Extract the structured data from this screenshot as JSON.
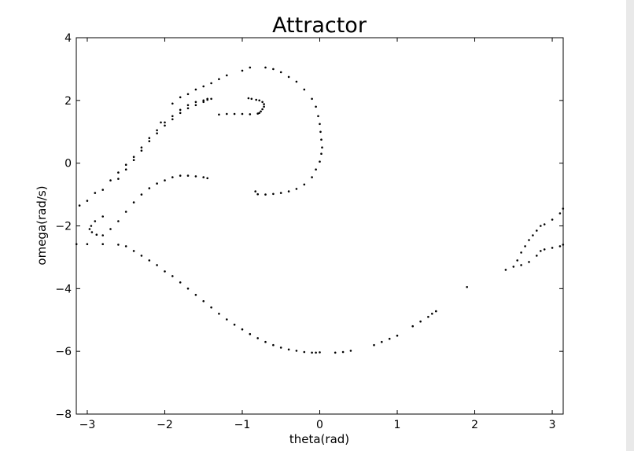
{
  "chart_data": {
    "type": "scatter",
    "title": "Attractor",
    "xlabel": "theta(rad)",
    "ylabel": "omega(rad/s)",
    "xlim": [
      -3.14159,
      3.14159
    ],
    "ylim": [
      -8,
      4
    ],
    "xticks": [
      -3,
      -2,
      -1,
      0,
      1,
      2,
      3
    ],
    "xtick_labels": [
      "−3",
      "−2",
      "−1",
      "0",
      "1",
      "2",
      "3"
    ],
    "yticks": [
      -8,
      -6,
      -4,
      -2,
      0,
      2,
      4
    ],
    "ytick_labels": [
      "−8",
      "−6",
      "−4",
      "−2",
      "0",
      "2",
      "4"
    ],
    "grid": false,
    "marker_color": "#000000",
    "series": [
      {
        "x": [
          -3.1,
          -2.9,
          -2.7,
          -2.6,
          -2.5,
          -2.4,
          -2.3,
          -2.2,
          -2.1,
          -2.0,
          -1.9,
          -1.8,
          -1.7,
          -1.6,
          -1.5,
          -1.45,
          -1.4,
          -1.3,
          -1.2,
          -1.1,
          -1.0,
          -0.9,
          -0.8,
          -0.78,
          -0.76,
          -0.74,
          -0.72,
          -0.72,
          -0.74,
          -0.78,
          -0.82,
          -0.88,
          -0.92
        ],
        "y": [
          -1.35,
          -0.95,
          -0.55,
          -0.3,
          -0.05,
          0.2,
          0.5,
          0.8,
          1.05,
          1.3,
          1.5,
          1.7,
          1.85,
          1.95,
          2.0,
          2.02,
          2.05,
          1.55,
          1.57,
          1.57,
          1.57,
          1.56,
          1.58,
          1.6,
          1.65,
          1.72,
          1.8,
          1.88,
          1.95,
          2.0,
          2.02,
          2.05,
          2.07
        ]
      },
      {
        "x": [
          -3.0,
          -2.8,
          -2.6,
          -2.5,
          -2.4,
          -2.3,
          -2.2,
          -2.1,
          -2.0,
          -1.9,
          -1.8,
          -1.7,
          -1.6,
          -1.5,
          -1.45
        ],
        "y": [
          -1.2,
          -0.85,
          -0.5,
          -0.2,
          0.1,
          0.4,
          0.7,
          0.95,
          1.2,
          1.4,
          1.6,
          1.75,
          1.85,
          1.95,
          2.05
        ]
      },
      {
        "x": [
          -2.05,
          -1.9,
          -1.8,
          -1.7,
          -1.6,
          -1.5,
          -1.4,
          -1.3,
          -1.2,
          -1.0,
          -0.9
        ],
        "y": [
          1.3,
          1.9,
          2.1,
          2.2,
          2.35,
          2.45,
          2.55,
          2.68,
          2.8,
          2.95,
          3.05
        ]
      },
      {
        "x": [
          -0.7,
          -0.6,
          -0.5,
          -0.4,
          -0.3,
          -0.2,
          -0.1,
          -0.05,
          -0.02,
          0.0,
          0.01,
          0.02,
          0.03,
          0.02,
          0.0,
          -0.05,
          -0.1,
          -0.2,
          -0.3,
          -0.4,
          -0.5,
          -0.6,
          -0.7,
          -0.8,
          -0.83
        ],
        "y": [
          3.05,
          3.0,
          2.9,
          2.75,
          2.6,
          2.35,
          2.05,
          1.8,
          1.5,
          1.25,
          1.0,
          0.75,
          0.5,
          0.3,
          0.05,
          -0.2,
          -0.45,
          -0.68,
          -0.82,
          -0.9,
          -0.95,
          -0.98,
          -1.0,
          -0.99,
          -0.9
        ]
      },
      {
        "x": [
          -2.8,
          -2.9,
          -2.95,
          -2.97,
          -2.94,
          -2.88,
          -2.8,
          -2.7,
          -2.6,
          -2.5,
          -2.4,
          -2.3,
          -2.2,
          -2.1,
          -2.0,
          -1.9,
          -1.8,
          -1.7,
          -1.6,
          -1.5,
          -1.45
        ],
        "y": [
          -1.7,
          -1.85,
          -2.0,
          -2.1,
          -2.2,
          -2.28,
          -2.3,
          -2.1,
          -1.85,
          -1.55,
          -1.25,
          -1.0,
          -0.8,
          -0.65,
          -0.55,
          -0.45,
          -0.4,
          -0.4,
          -0.42,
          -0.45,
          -0.48
        ]
      },
      {
        "x": [
          -3.14,
          -3.0,
          -2.8,
          -2.6,
          -2.5,
          -2.4,
          -2.3,
          -2.2,
          -2.1,
          -2.0,
          -1.9,
          -1.8,
          -1.7,
          -1.6,
          -1.5,
          -1.4,
          -1.3,
          -1.2,
          -1.1,
          -1.0,
          -0.9,
          -0.8,
          -0.7,
          -0.6,
          -0.5,
          -0.4,
          -0.3,
          -0.2,
          -0.1,
          -0.05,
          0.0
        ],
        "y": [
          -2.58,
          -2.58,
          -2.58,
          -2.6,
          -2.65,
          -2.8,
          -2.95,
          -3.1,
          -3.25,
          -3.45,
          -3.6,
          -3.8,
          -4.0,
          -4.2,
          -4.4,
          -4.6,
          -4.8,
          -4.98,
          -5.15,
          -5.3,
          -5.45,
          -5.58,
          -5.7,
          -5.8,
          -5.88,
          -5.94,
          -5.98,
          -6.02,
          -6.04,
          -6.04,
          -6.03
        ]
      },
      {
        "x": [
          0.2,
          0.3,
          0.4,
          0.7,
          0.8,
          0.9,
          1.0,
          1.2,
          1.3,
          1.4,
          1.45,
          1.5,
          1.9
        ],
        "y": [
          -6.04,
          -6.02,
          -5.98,
          -5.8,
          -5.7,
          -5.6,
          -5.5,
          -5.2,
          -5.05,
          -4.9,
          -4.8,
          -4.72,
          -3.95
        ]
      },
      {
        "x": [
          2.4,
          2.5,
          2.55,
          2.6,
          2.65,
          2.7,
          2.75,
          2.8,
          2.85,
          2.9,
          3.0,
          3.1,
          3.14
        ],
        "y": [
          -3.4,
          -3.3,
          -3.1,
          -2.85,
          -2.65,
          -2.45,
          -2.3,
          -2.15,
          -2.0,
          -1.95,
          -1.8,
          -1.6,
          -1.45
        ]
      },
      {
        "x": [
          2.6,
          2.7,
          2.8,
          2.85,
          2.9,
          3.0,
          3.1,
          3.14
        ],
        "y": [
          -3.25,
          -3.15,
          -2.95,
          -2.8,
          -2.75,
          -2.7,
          -2.65,
          -2.6
        ]
      }
    ]
  }
}
